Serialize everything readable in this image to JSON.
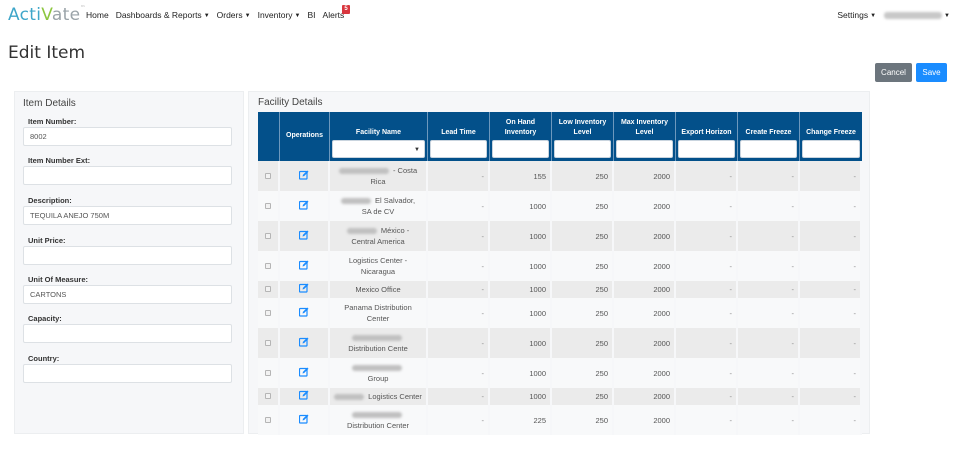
{
  "navbar": {
    "logo": {
      "prefix": "Acti",
      "v": "V",
      "suffix": "ate",
      "tm": "™"
    },
    "items": [
      {
        "label": "Home",
        "dropdown": false
      },
      {
        "label": "Dashboards & Reports",
        "dropdown": true
      },
      {
        "label": "Orders",
        "dropdown": true
      },
      {
        "label": "Inventory",
        "dropdown": true
      },
      {
        "label": "BI",
        "dropdown": false
      },
      {
        "label": "Alerts",
        "dropdown": false
      }
    ],
    "alerts_count": "5",
    "settings_label": "Settings",
    "user_email": "[redacted email]"
  },
  "page": {
    "title": "Edit Item",
    "cancel_label": "Cancel",
    "save_label": "Save"
  },
  "item_details": {
    "title": "Item Details",
    "fields": [
      {
        "label": "Item Number:",
        "value": "8002"
      },
      {
        "label": "Item Number Ext:",
        "value": ""
      },
      {
        "label": "Description:",
        "value": "TEQUILA ANEJO 750M"
      },
      {
        "label": "Unit Price:",
        "value": ""
      },
      {
        "label": "Unit Of Measure:",
        "value": "CARTONS"
      },
      {
        "label": "Capacity:",
        "value": ""
      },
      {
        "label": "Country:",
        "value": ""
      }
    ]
  },
  "facility_details": {
    "title": "Facility Details",
    "columns": [
      {
        "label": "",
        "filter": "none"
      },
      {
        "label": "Operations",
        "filter": "none"
      },
      {
        "label": "Facility Name",
        "filter": "select"
      },
      {
        "label": "Lead Time",
        "filter": "text"
      },
      {
        "label": "On Hand Inventory",
        "filter": "text"
      },
      {
        "label": "Low Inventory Level",
        "filter": "text"
      },
      {
        "label": "Max Inventory Level",
        "filter": "text"
      },
      {
        "label": "Export Horizon",
        "filter": "text"
      },
      {
        "label": "Create Freeze",
        "filter": "text"
      },
      {
        "label": "Change Freeze",
        "filter": "text"
      }
    ],
    "rows": [
      {
        "name_blurred": true,
        "name_line1": " - Costa",
        "name_line2": "Rica",
        "lead_time": "-",
        "on_hand": "155",
        "low": "250",
        "max": "2000",
        "export": "-",
        "create_freeze": "-",
        "change_freeze": "-"
      },
      {
        "name_blurred": true,
        "name_line1": " El Salvador,",
        "name_line2": "SA de CV",
        "lead_time": "-",
        "on_hand": "1000",
        "low": "250",
        "max": "2000",
        "export": "-",
        "create_freeze": "-",
        "change_freeze": "-"
      },
      {
        "name_blurred": true,
        "name_line1": " México -",
        "name_line2": "Central America",
        "lead_time": "-",
        "on_hand": "1000",
        "low": "250",
        "max": "2000",
        "export": "-",
        "create_freeze": "-",
        "change_freeze": "-"
      },
      {
        "name_blurred": false,
        "name_line1": "Logistics Center -",
        "name_line2": "Nicaragua",
        "lead_time": "-",
        "on_hand": "1000",
        "low": "250",
        "max": "2000",
        "export": "-",
        "create_freeze": "-",
        "change_freeze": "-"
      },
      {
        "name_blurred": false,
        "name_line1": "Mexico Office",
        "name_line2": "",
        "lead_time": "-",
        "on_hand": "1000",
        "low": "250",
        "max": "2000",
        "export": "-",
        "create_freeze": "-",
        "change_freeze": "-"
      },
      {
        "name_blurred": false,
        "name_line1": "Panama Distribution",
        "name_line2": "Center",
        "lead_time": "-",
        "on_hand": "1000",
        "low": "250",
        "max": "2000",
        "export": "-",
        "create_freeze": "-",
        "change_freeze": "-"
      },
      {
        "name_blurred": true,
        "name_line1": "",
        "name_line2": "Distribution Cente",
        "lead_time": "-",
        "on_hand": "1000",
        "low": "250",
        "max": "2000",
        "export": "-",
        "create_freeze": "-",
        "change_freeze": "-"
      },
      {
        "name_blurred": true,
        "name_line1": "",
        "name_line2": "Group",
        "lead_time": "-",
        "on_hand": "1000",
        "low": "250",
        "max": "2000",
        "export": "-",
        "create_freeze": "-",
        "change_freeze": "-"
      },
      {
        "name_blurred": true,
        "name_line1": " Logistics Center",
        "name_line2": "",
        "lead_time": "-",
        "on_hand": "1000",
        "low": "250",
        "max": "2000",
        "export": "-",
        "create_freeze": "-",
        "change_freeze": "-"
      },
      {
        "name_blurred": true,
        "name_line1": "",
        "name_line2": "Distribution Center",
        "lead_time": "-",
        "on_hand": "225",
        "low": "250",
        "max": "2000",
        "export": "-",
        "create_freeze": "-",
        "change_freeze": "-"
      }
    ]
  },
  "colors": {
    "table_header": "#03508a",
    "save_button": "#1a8cff",
    "cancel_button": "#6c757d",
    "alert_badge": "#d9363e",
    "edit_icon": "#1a8cff",
    "logo_blue": "#3ea6c9",
    "logo_green": "#8cc63f"
  }
}
